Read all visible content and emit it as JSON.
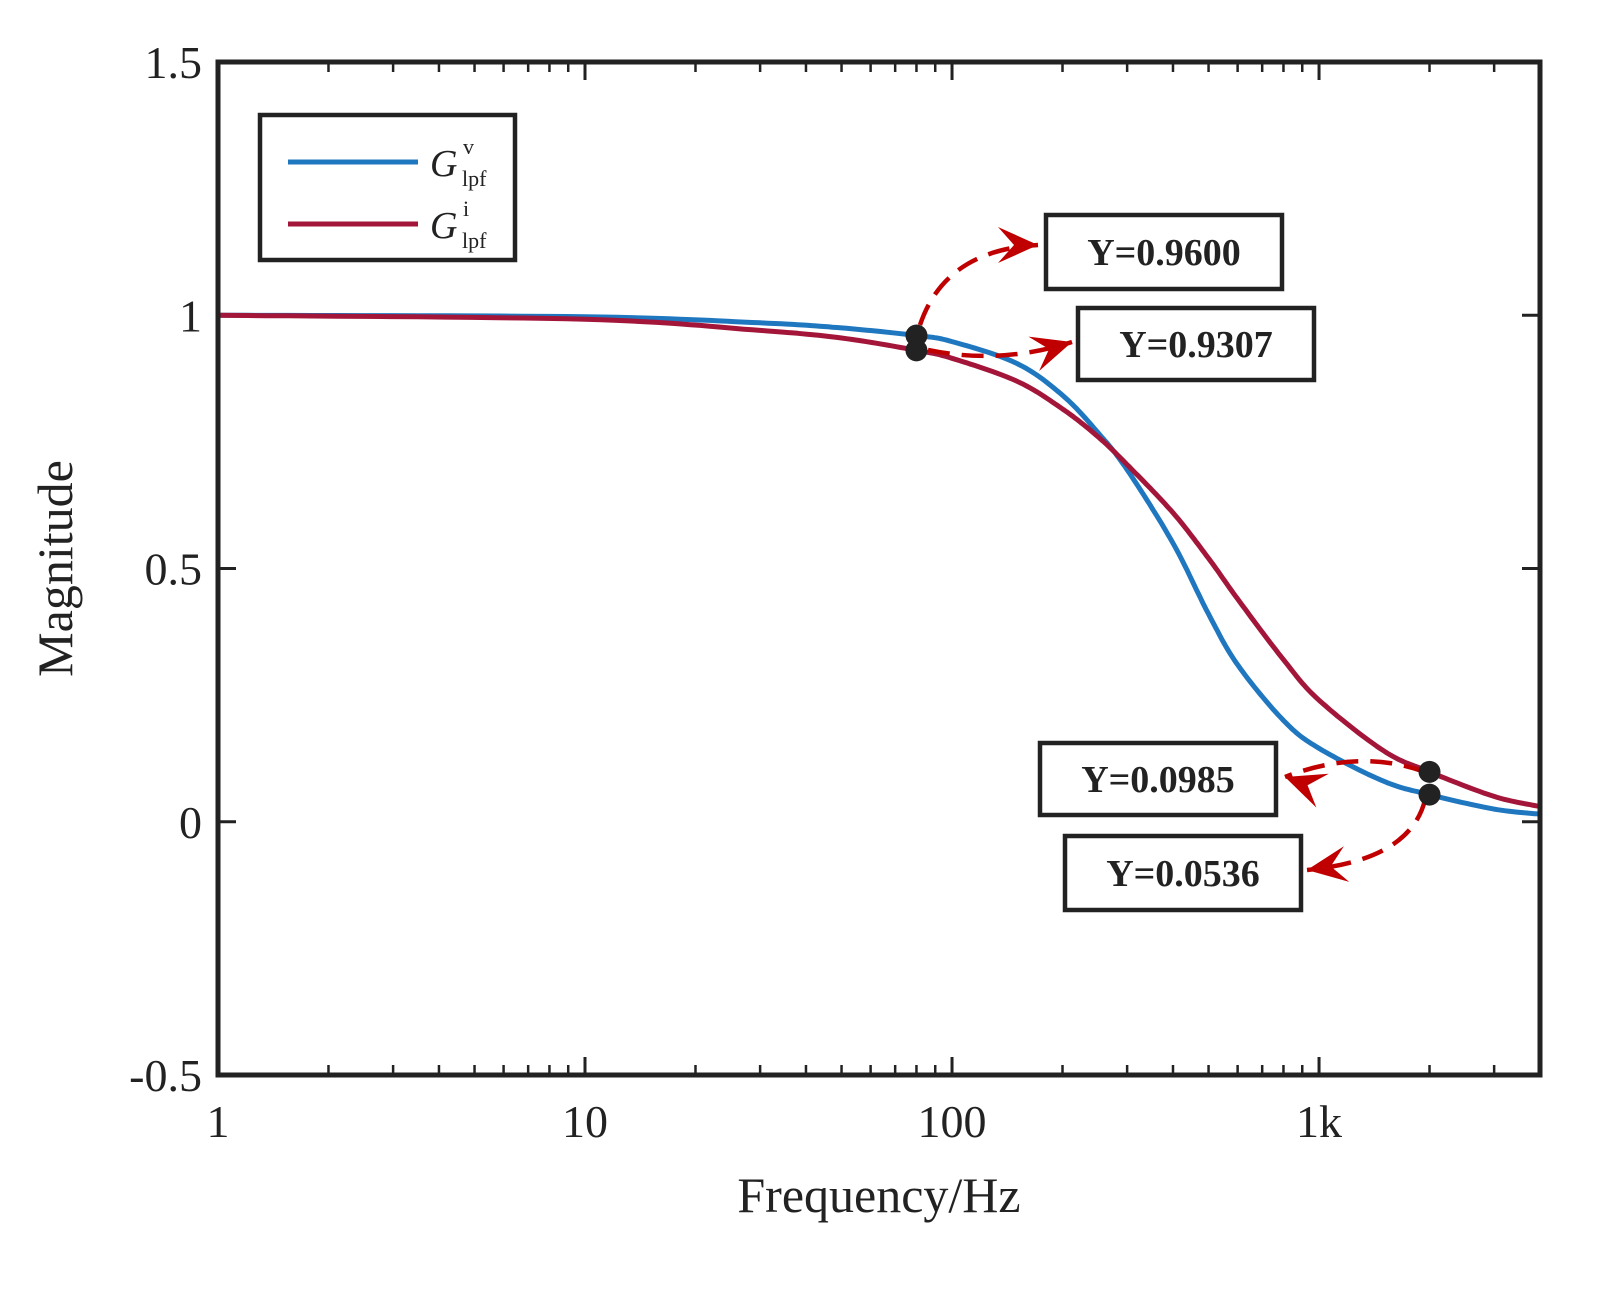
{
  "chart_data": {
    "type": "line",
    "xscale": "log",
    "xlabel": "Frequency/Hz",
    "ylabel": "Magnitude",
    "xlim": [
      1,
      4000
    ],
    "ylim": [
      -0.5,
      1.5
    ],
    "xticks": [
      1,
      10,
      100,
      1000
    ],
    "xticklabels": [
      "1",
      "10",
      "100",
      "1k"
    ],
    "yticks": [
      -0.5,
      0,
      0.5,
      1,
      1.5
    ],
    "yticklabels": [
      "-0.5",
      "0",
      "0.5",
      "1",
      "1.5"
    ],
    "series": [
      {
        "name": "G_lpf^v",
        "legend_main": "G",
        "legend_sup": "v",
        "legend_sub": "lpf",
        "color": "#1f77c0",
        "x": [
          1,
          10,
          30,
          50,
          80,
          100,
          150,
          200,
          250,
          300,
          400,
          500,
          600,
          800,
          1000,
          1500,
          2000,
          3000,
          4000
        ],
        "y": [
          1.0,
          0.997,
          0.985,
          0.975,
          0.96,
          0.948,
          0.905,
          0.842,
          0.768,
          0.695,
          0.55,
          0.41,
          0.31,
          0.2,
          0.145,
          0.08,
          0.0536,
          0.025,
          0.015
        ]
      },
      {
        "name": "G_lpf^i",
        "legend_main": "G",
        "legend_sup": "i",
        "legend_sub": "lpf",
        "color": "#a3163a",
        "x": [
          1,
          10,
          30,
          50,
          80,
          100,
          150,
          200,
          250,
          300,
          400,
          500,
          600,
          800,
          1000,
          1500,
          2000,
          3000,
          4000
        ],
        "y": [
          1.0,
          0.992,
          0.97,
          0.955,
          0.9307,
          0.915,
          0.87,
          0.815,
          0.76,
          0.705,
          0.61,
          0.52,
          0.44,
          0.32,
          0.24,
          0.14,
          0.0985,
          0.05,
          0.03
        ]
      }
    ],
    "annotations": [
      {
        "label": "Y=0.9600",
        "x": 80,
        "y": 0.96
      },
      {
        "label": "Y=0.9307",
        "x": 80,
        "y": 0.9307
      },
      {
        "label": "Y=0.0985",
        "x": 2000,
        "y": 0.0985
      },
      {
        "label": "Y=0.0536",
        "x": 2000,
        "y": 0.0536
      }
    ],
    "annotation_color": "#c00000",
    "legend_position": "top-left"
  }
}
